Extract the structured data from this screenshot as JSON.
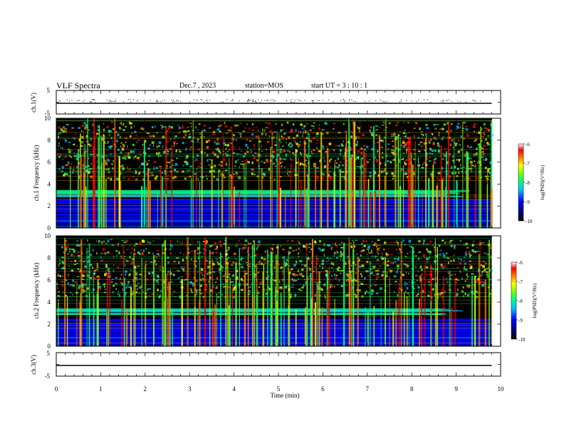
{
  "header": {
    "title": "VLF Spectra",
    "date": "Dec.7 , 2023",
    "station": "station=MOS",
    "start": "start  UT =   3 : 10 : 1"
  },
  "chart_data": [
    {
      "type": "line",
      "title": "",
      "xlabel": "",
      "ylabel": "ch.1(V)",
      "xlim": [
        0,
        10
      ],
      "ylim": [
        -5,
        5
      ],
      "y_ticks": [
        "5",
        "-5"
      ],
      "series": [
        {
          "name": "",
          "x": [
            0,
            9.8
          ],
          "values": [
            0,
            0
          ]
        }
      ]
    },
    {
      "type": "heatmap",
      "title": "",
      "xlabel": "",
      "ylabel": "ch.1  Frequency (kHz)",
      "xlim": [
        0,
        10
      ],
      "ylim": [
        0,
        10
      ],
      "y_ticks": [
        "0",
        "2",
        "4",
        "6",
        "8",
        "10"
      ],
      "data_extent_min": 9.8,
      "colorbar": {
        "label": "log(PSD)(V²/Hz)",
        "range": [
          -10,
          -6
        ],
        "ticks": [
          "-6",
          "-7",
          "-8",
          "-9",
          "-10"
        ]
      }
    },
    {
      "type": "heatmap",
      "title": "",
      "xlabel": "",
      "ylabel": "ch.2  Frequency (kHz)",
      "xlim": [
        0,
        10
      ],
      "ylim": [
        0,
        10
      ],
      "y_ticks": [
        "0",
        "2",
        "4",
        "6",
        "8",
        "10"
      ],
      "data_extent_min": 9.8,
      "colorbar": {
        "label": "log(PSD)(V²/Hz)",
        "range": [
          -10,
          -6
        ],
        "ticks": [
          "-6",
          "-7",
          "-8",
          "-9",
          "-10"
        ]
      }
    },
    {
      "type": "line",
      "title": "",
      "xlabel": "Time  (min)",
      "ylabel": "ch.3(V)",
      "xlim": [
        0,
        10
      ],
      "ylim": [
        -5,
        5
      ],
      "x_ticks": [
        "0",
        "1",
        "2",
        "3",
        "4",
        "5",
        "6",
        "7",
        "8",
        "9",
        "10"
      ],
      "y_ticks": [
        "5",
        "-5"
      ],
      "series": [
        {
          "name": "",
          "x": [
            0,
            9.8
          ],
          "values": [
            0,
            0
          ]
        }
      ]
    }
  ],
  "colors": {
    "background": "#000000",
    "colormap": [
      "#00007f",
      "#0000ff",
      "#00bfff",
      "#00ff7f",
      "#7fff00",
      "#ffff00",
      "#ff7f00",
      "#ff0000",
      "#ffffff"
    ]
  }
}
